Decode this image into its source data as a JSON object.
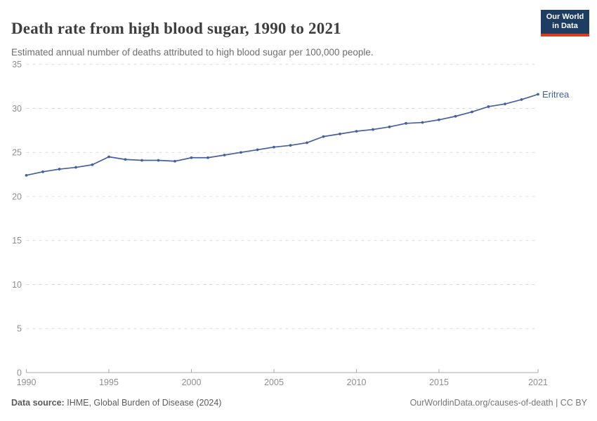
{
  "header": {
    "title": "Death rate from high blood sugar, 1990 to 2021",
    "subtitle": "Estimated annual number of deaths attributed to high blood sugar per 100,000 people.",
    "logo": {
      "line1": "Our World",
      "line2": "in Data"
    }
  },
  "chart_data": {
    "type": "line",
    "title": "Death rate from high blood sugar, 1990 to 2021",
    "x": [
      1990,
      1991,
      1992,
      1993,
      1994,
      1995,
      1996,
      1997,
      1998,
      1999,
      2000,
      2001,
      2002,
      2003,
      2004,
      2005,
      2006,
      2007,
      2008,
      2009,
      2010,
      2011,
      2012,
      2013,
      2014,
      2015,
      2016,
      2017,
      2018,
      2019,
      2020,
      2021
    ],
    "series": [
      {
        "name": "Eritrea",
        "values": [
          22.4,
          22.8,
          23.1,
          23.3,
          23.6,
          24.5,
          24.2,
          24.1,
          24.1,
          24.0,
          24.4,
          24.4,
          24.7,
          25.0,
          25.3,
          25.6,
          25.8,
          26.1,
          26.8,
          27.1,
          27.4,
          27.6,
          27.9,
          28.3,
          28.4,
          28.7,
          29.1,
          29.6,
          30.2,
          30.5,
          31.0,
          31.6
        ]
      }
    ],
    "entity_label": "Eritrea",
    "xticks": [
      1990,
      1995,
      2000,
      2005,
      2010,
      2015,
      2021
    ],
    "yticks": [
      0,
      5,
      10,
      15,
      20,
      25,
      30,
      35
    ],
    "xlim": [
      1990,
      2021
    ],
    "ylim": [
      0,
      35
    ],
    "grid": "horizontal-dashed",
    "legend_position": "end-of-line-label",
    "markers": true
  },
  "footer": {
    "source_label": "Data source:",
    "source_value": "IHME, Global Burden of Disease (2024)",
    "credit": "OurWorldinData.org/causes-of-death | CC BY"
  },
  "colors": {
    "line": "#44619C",
    "logo_bg": "#1d3d63",
    "logo_accent": "#dc3927",
    "grid": "#dcdcdc",
    "axis": "#a8a8a8",
    "tick_label": "#8f8f8f",
    "title": "#3e3e3e",
    "subtitle": "#6e6e6e"
  }
}
